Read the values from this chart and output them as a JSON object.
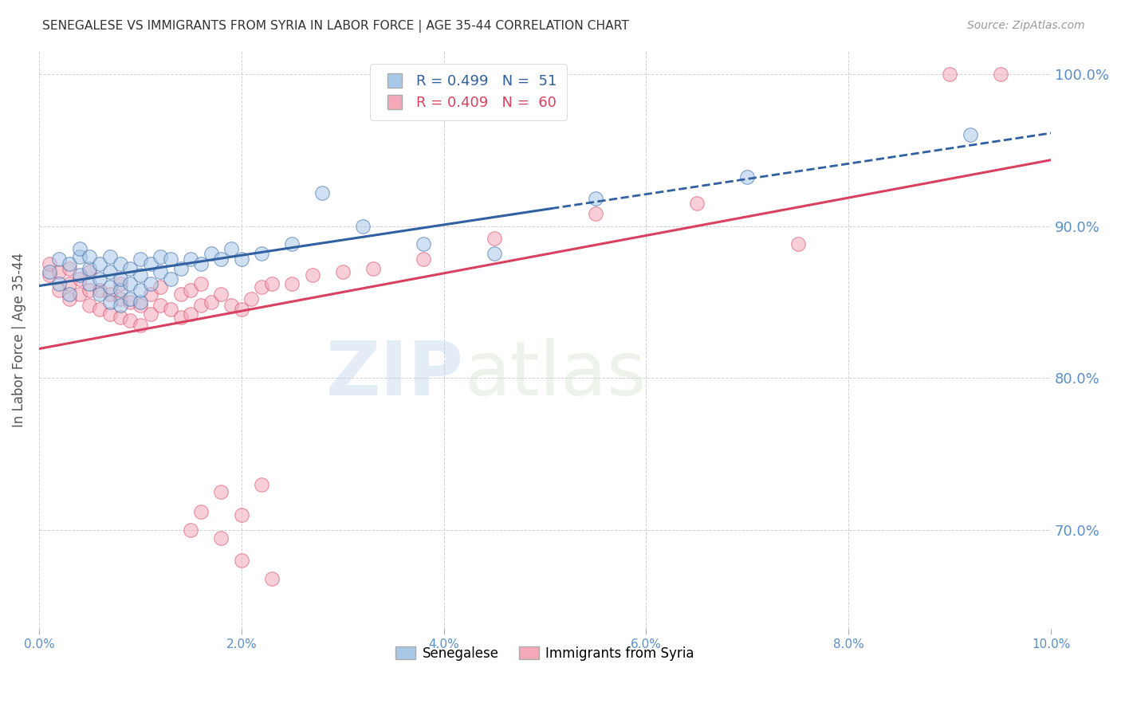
{
  "title": "SENEGALESE VS IMMIGRANTS FROM SYRIA IN LABOR FORCE | AGE 35-44 CORRELATION CHART",
  "source": "Source: ZipAtlas.com",
  "ylabel": "In Labor Force | Age 35-44",
  "xlim": [
    0.0,
    0.1
  ],
  "ylim": [
    0.635,
    1.015
  ],
  "yticks": [
    0.7,
    0.8,
    0.9,
    1.0
  ],
  "xticks": [
    0.0,
    0.02,
    0.04,
    0.06,
    0.08,
    0.1
  ],
  "xtick_labels": [
    "0.0%",
    "2.0%",
    "4.0%",
    "6.0%",
    "8.0%",
    "10.0%"
  ],
  "ytick_labels": [
    "70.0%",
    "80.0%",
    "90.0%",
    "100.0%"
  ],
  "legend_r1": "R = 0.499",
  "legend_n1": "N =  51",
  "legend_r2": "R = 0.409",
  "legend_n2": "N =  60",
  "color_blue": "#a8c8e8",
  "color_pink": "#f4a8b8",
  "color_blue_line": "#3060a0",
  "color_pink_line": "#d84060",
  "watermark_zip": "ZIP",
  "watermark_atlas": "atlas",
  "title_color": "#333333",
  "axis_color": "#5a8fc7",
  "blue_x": [
    0.001,
    0.002,
    0.002,
    0.003,
    0.003,
    0.004,
    0.004,
    0.004,
    0.005,
    0.005,
    0.005,
    0.006,
    0.006,
    0.006,
    0.007,
    0.007,
    0.007,
    0.007,
    0.008,
    0.008,
    0.008,
    0.008,
    0.009,
    0.009,
    0.009,
    0.01,
    0.01,
    0.01,
    0.01,
    0.011,
    0.011,
    0.012,
    0.012,
    0.013,
    0.013,
    0.014,
    0.015,
    0.016,
    0.017,
    0.018,
    0.019,
    0.02,
    0.022,
    0.025,
    0.028,
    0.032,
    0.038,
    0.045,
    0.055,
    0.07,
    0.092
  ],
  "blue_y": [
    0.87,
    0.862,
    0.878,
    0.855,
    0.875,
    0.868,
    0.88,
    0.885,
    0.862,
    0.872,
    0.88,
    0.855,
    0.865,
    0.875,
    0.85,
    0.86,
    0.87,
    0.88,
    0.848,
    0.858,
    0.865,
    0.875,
    0.852,
    0.862,
    0.872,
    0.85,
    0.858,
    0.868,
    0.878,
    0.862,
    0.875,
    0.87,
    0.88,
    0.865,
    0.878,
    0.872,
    0.878,
    0.875,
    0.882,
    0.878,
    0.885,
    0.878,
    0.882,
    0.888,
    0.922,
    0.9,
    0.888,
    0.882,
    0.918,
    0.932,
    0.96
  ],
  "pink_x": [
    0.001,
    0.001,
    0.002,
    0.002,
    0.003,
    0.003,
    0.003,
    0.004,
    0.004,
    0.005,
    0.005,
    0.005,
    0.006,
    0.006,
    0.007,
    0.007,
    0.008,
    0.008,
    0.008,
    0.009,
    0.009,
    0.01,
    0.01,
    0.011,
    0.011,
    0.012,
    0.012,
    0.013,
    0.014,
    0.014,
    0.015,
    0.015,
    0.016,
    0.016,
    0.017,
    0.018,
    0.019,
    0.02,
    0.021,
    0.022,
    0.023,
    0.025,
    0.027,
    0.03,
    0.033,
    0.038,
    0.045,
    0.055,
    0.065,
    0.075,
    0.018,
    0.02,
    0.022,
    0.015,
    0.016,
    0.018,
    0.02,
    0.023,
    0.09,
    0.095
  ],
  "pink_y": [
    0.868,
    0.875,
    0.858,
    0.87,
    0.852,
    0.862,
    0.872,
    0.855,
    0.865,
    0.848,
    0.858,
    0.87,
    0.845,
    0.858,
    0.842,
    0.855,
    0.84,
    0.852,
    0.862,
    0.838,
    0.85,
    0.835,
    0.848,
    0.842,
    0.855,
    0.848,
    0.86,
    0.845,
    0.84,
    0.855,
    0.842,
    0.858,
    0.848,
    0.862,
    0.85,
    0.855,
    0.848,
    0.845,
    0.852,
    0.86,
    0.862,
    0.862,
    0.868,
    0.87,
    0.872,
    0.878,
    0.892,
    0.908,
    0.915,
    0.888,
    0.725,
    0.71,
    0.73,
    0.7,
    0.712,
    0.695,
    0.68,
    0.668,
    1.0,
    1.0
  ],
  "background_color": "#ffffff"
}
